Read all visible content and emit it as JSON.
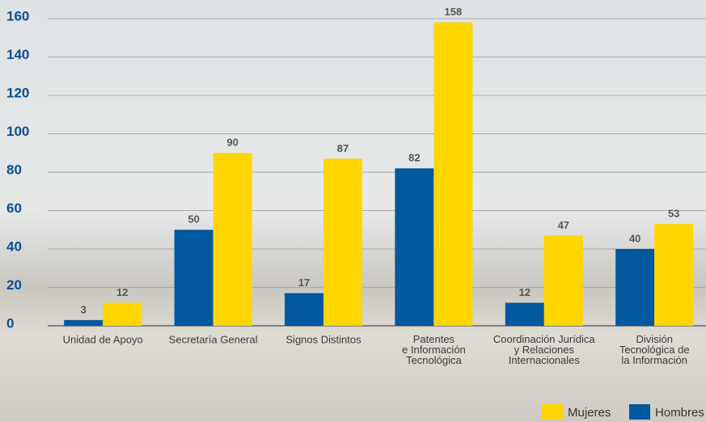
{
  "chart_data": {
    "type": "bar",
    "categories": [
      "Unidad de Apoyo",
      "Secretaría General",
      "Signos Distintos",
      "Patentes\ne Información\nTecnológica",
      "Coordinación Jurídica\ny Relaciones\nInternacionales",
      "División\nTecnológica de\nla Información"
    ],
    "series": [
      {
        "name": "Hombres",
        "color": "#00589e",
        "values": [
          3,
          50,
          17,
          82,
          12,
          40
        ]
      },
      {
        "name": "Mujeres",
        "color": "#ffd600",
        "values": [
          12,
          90,
          87,
          158,
          47,
          53
        ]
      }
    ],
    "ylim": [
      0,
      160
    ],
    "yticks": [
      0,
      20,
      40,
      60,
      80,
      100,
      120,
      140,
      160
    ],
    "grid": true
  }
}
